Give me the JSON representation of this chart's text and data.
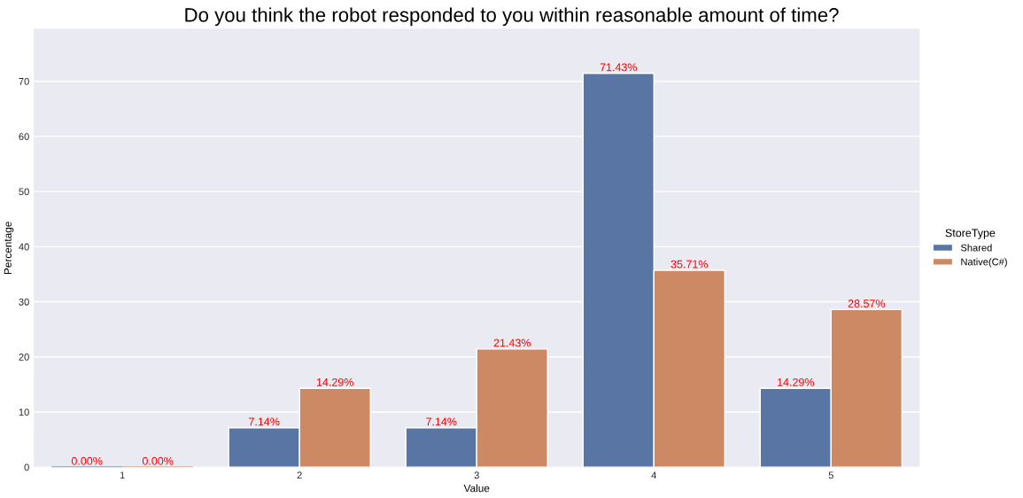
{
  "chart_data": {
    "type": "bar",
    "title": "Do you think the robot responded to you within reasonable amount of time?",
    "xlabel": "Value",
    "ylabel": "Percentage",
    "legend_title": "StoreType",
    "categories": [
      "1",
      "2",
      "3",
      "4",
      "5"
    ],
    "series": [
      {
        "name": "Shared",
        "color": "#5875a4",
        "values": [
          0,
          7.14,
          7.14,
          71.43,
          14.29
        ],
        "value_labels": [
          "0.00%",
          "7.14%",
          "7.14%",
          "71.43%",
          "14.29%"
        ]
      },
      {
        "name": "Native(C#)",
        "color": "#cc8963",
        "values": [
          0,
          14.29,
          21.43,
          35.71,
          28.57
        ],
        "value_labels": [
          "0.00%",
          "14.29%",
          "21.43%",
          "35.71%",
          "28.57%"
        ]
      }
    ],
    "ylim": [
      0,
      79.5
    ],
    "yticks": [
      0,
      10,
      20,
      30,
      40,
      50,
      60,
      70
    ],
    "grid": "y",
    "legend": "right"
  }
}
